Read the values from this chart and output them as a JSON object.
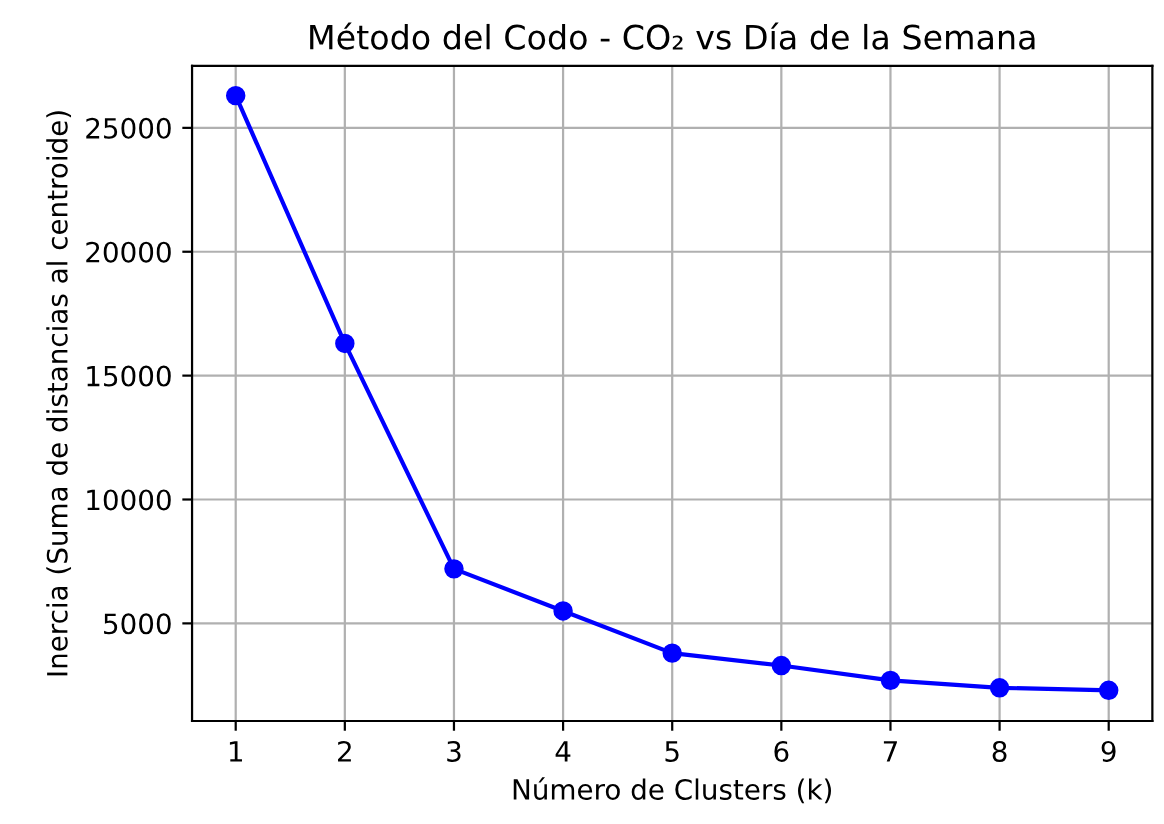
{
  "chart_data": {
    "type": "line",
    "title": "Método del Codo - CO₂ vs Día de la Semana",
    "xlabel": "Número de Clusters (k)",
    "ylabel": "Inercia (Suma de distancias al centroide)",
    "x": [
      1,
      2,
      3,
      4,
      5,
      6,
      7,
      8,
      9
    ],
    "series": [
      {
        "color": "#0000ff",
        "values": [
          26300,
          16300,
          7200,
          5500,
          3800,
          3300,
          2700,
          2400,
          2300
        ]
      }
    ],
    "xlim": [
      0.6,
      9.4
    ],
    "xticks": [
      1,
      2,
      3,
      4,
      5,
      6,
      7,
      8,
      9
    ],
    "ylim": [
      1060,
      27500
    ],
    "yticks": [
      5000,
      10000,
      15000,
      20000,
      25000
    ],
    "grid": true,
    "marker": "circle",
    "line_style": "solid"
  }
}
